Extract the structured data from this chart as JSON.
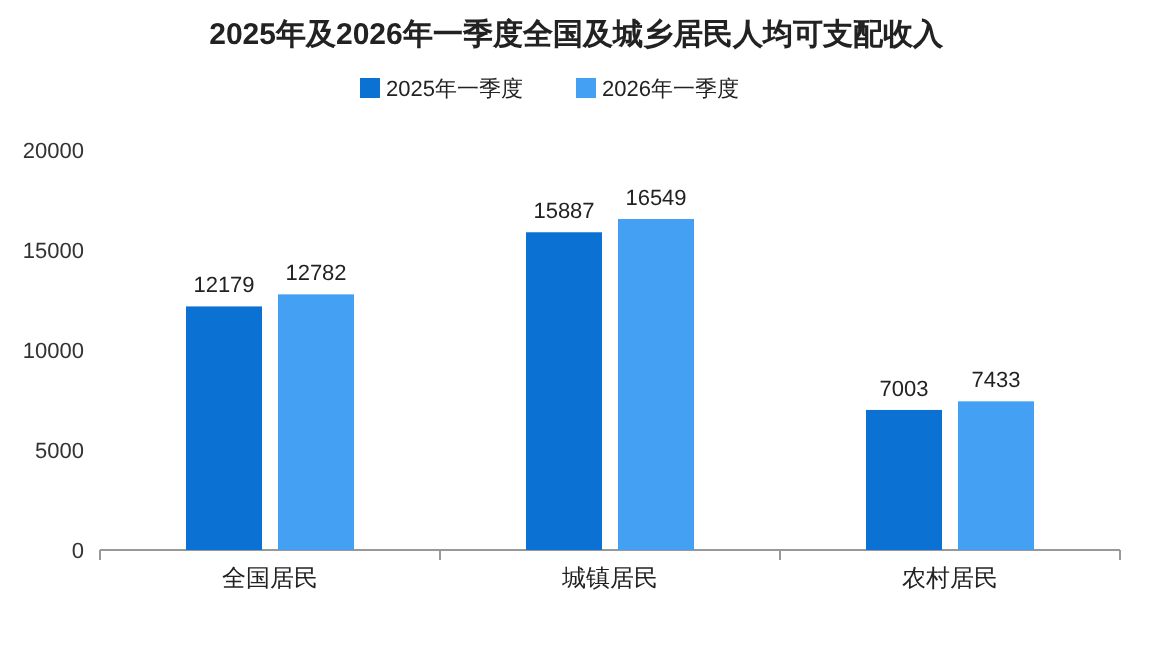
{
  "chart_data": {
    "type": "bar",
    "title": "2025年及2026年一季度全国及城乡居民人均可支配收入",
    "categories": [
      "全国居民",
      "城镇居民",
      "农村居民"
    ],
    "series": [
      {
        "name": "2025年一季度",
        "color": "#0b72d3",
        "values": [
          12179,
          15887,
          7003
        ]
      },
      {
        "name": "2026年一季度",
        "color": "#43a0f2",
        "values": [
          12782,
          16549,
          7433
        ]
      }
    ],
    "ylim": [
      0,
      20000
    ],
    "yticks": [
      0,
      5000,
      10000,
      15000,
      20000
    ],
    "data_labels": true,
    "legend": "top"
  }
}
